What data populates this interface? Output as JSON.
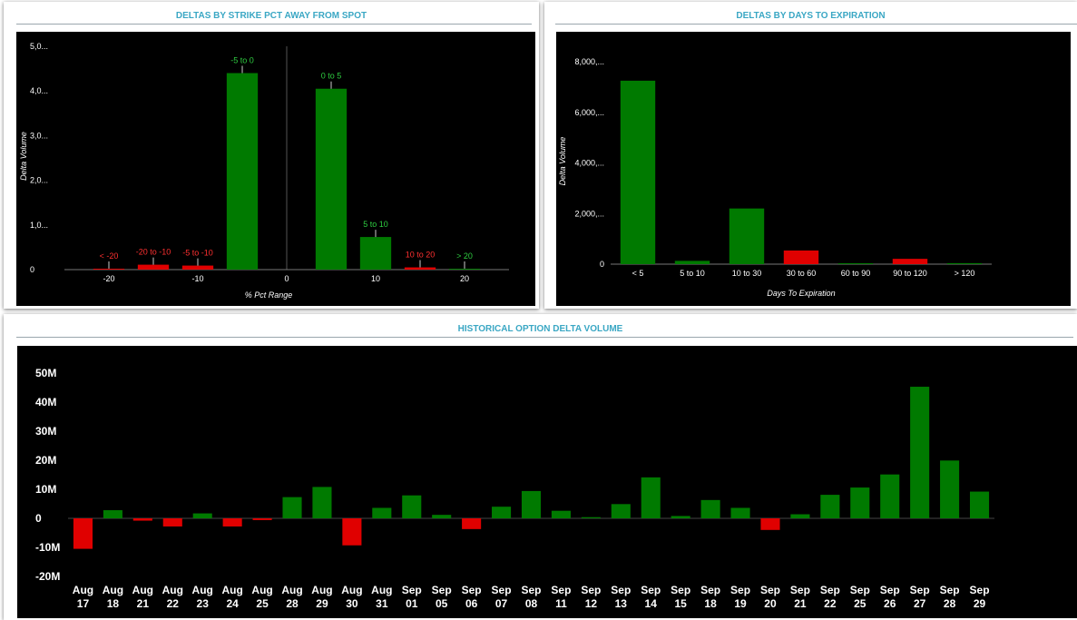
{
  "colors": {
    "positive": "#007a00",
    "negative": "#e00000",
    "axis_text": "#ffffff",
    "background": "#000000",
    "title": "#3aa7c4"
  },
  "strike_panel": {
    "title": "DELTAS BY STRIKE PCT AWAY FROM SPOT"
  },
  "expiry_panel": {
    "title": "DELTAS BY DAYS TO EXPIRATION"
  },
  "history_panel": {
    "title": "HISTORICAL OPTION DELTA VOLUME"
  },
  "chart_data": [
    {
      "id": "strike",
      "type": "bar",
      "xlabel": "% Pct Range",
      "ylabel": "Delta Volume",
      "xlim": [
        -25,
        25
      ],
      "ylim": [
        0,
        5000
      ],
      "x_ticks": [
        {
          "value": -20,
          "label": "-20"
        },
        {
          "value": -10,
          "label": "-10"
        },
        {
          "value": 0,
          "label": "0"
        },
        {
          "value": 10,
          "label": "10"
        },
        {
          "value": 20,
          "label": "20"
        }
      ],
      "y_ticks": [
        {
          "value": 0,
          "label": "0"
        },
        {
          "value": 1000,
          "label": "1,0..."
        },
        {
          "value": 2000,
          "label": "2,0..."
        },
        {
          "value": 3000,
          "label": "3,0..."
        },
        {
          "value": 4000,
          "label": "4,0..."
        },
        {
          "value": 5000,
          "label": "5,0..."
        }
      ],
      "bars": [
        {
          "label": "< -20",
          "x": -20,
          "value": 10,
          "sign": "negative"
        },
        {
          "label": "-20 to -10",
          "x": -15,
          "value": 110,
          "sign": "negative"
        },
        {
          "label": "-5 to -10",
          "x": -10,
          "value": 90,
          "sign": "negative"
        },
        {
          "label": "-5 to 0",
          "x": -5,
          "value": 4400,
          "sign": "positive"
        },
        {
          "label": "0 to 5",
          "x": 5,
          "value": 4050,
          "sign": "positive"
        },
        {
          "label": "5 to 10",
          "x": 10,
          "value": 730,
          "sign": "positive"
        },
        {
          "label": "10 to 20",
          "x": 15,
          "value": 50,
          "sign": "negative"
        },
        {
          "label": "> 20",
          "x": 20,
          "value": 10,
          "sign": "positive"
        }
      ]
    },
    {
      "id": "expiry",
      "type": "bar",
      "xlabel": "Days To Expiration",
      "ylabel": "Delta Volume",
      "ylim": [
        0,
        8000
      ],
      "y_ticks": [
        {
          "value": 0,
          "label": "0"
        },
        {
          "value": 2000,
          "label": "2,000,..."
        },
        {
          "value": 4000,
          "label": "4,000,..."
        },
        {
          "value": 6000,
          "label": "6,000,..."
        },
        {
          "value": 8000,
          "label": "8,000,..."
        }
      ],
      "categories": [
        "< 5",
        "5 to 10",
        "10 to 30",
        "30 to 60",
        "60 to 90",
        "90 to 120",
        "> 120"
      ],
      "values": [
        7250,
        130,
        2200,
        540,
        30,
        210,
        40
      ],
      "signs": [
        "positive",
        "positive",
        "positive",
        "negative",
        "positive",
        "negative",
        "positive"
      ]
    },
    {
      "id": "history",
      "type": "bar",
      "ylim": [
        -20,
        50
      ],
      "y_ticks": [
        {
          "value": 50,
          "label": "50M"
        },
        {
          "value": 40,
          "label": "40M"
        },
        {
          "value": 30,
          "label": "30M"
        },
        {
          "value": 20,
          "label": "20M"
        },
        {
          "value": 10,
          "label": "10M"
        },
        {
          "value": 0,
          "label": "0"
        },
        {
          "value": -10,
          "label": "-10M"
        },
        {
          "value": -20,
          "label": "-20M"
        }
      ],
      "categories": [
        [
          "Aug",
          "17"
        ],
        [
          "Aug",
          "18"
        ],
        [
          "Aug",
          "21"
        ],
        [
          "Aug",
          "22"
        ],
        [
          "Aug",
          "23"
        ],
        [
          "Aug",
          "24"
        ],
        [
          "Aug",
          "25"
        ],
        [
          "Aug",
          "28"
        ],
        [
          "Aug",
          "29"
        ],
        [
          "Aug",
          "30"
        ],
        [
          "Aug",
          "31"
        ],
        [
          "Sep",
          "01"
        ],
        [
          "Sep",
          "05"
        ],
        [
          "Sep",
          "06"
        ],
        [
          "Sep",
          "07"
        ],
        [
          "Sep",
          "08"
        ],
        [
          "Sep",
          "11"
        ],
        [
          "Sep",
          "12"
        ],
        [
          "Sep",
          "13"
        ],
        [
          "Sep",
          "14"
        ],
        [
          "Sep",
          "15"
        ],
        [
          "Sep",
          "18"
        ],
        [
          "Sep",
          "19"
        ],
        [
          "Sep",
          "20"
        ],
        [
          "Sep",
          "21"
        ],
        [
          "Sep",
          "22"
        ],
        [
          "Sep",
          "25"
        ],
        [
          "Sep",
          "26"
        ],
        [
          "Sep",
          "27"
        ],
        [
          "Sep",
          "28"
        ],
        [
          "Sep",
          "29"
        ]
      ],
      "values": [
        -10.5,
        2.8,
        -0.8,
        -2.8,
        1.7,
        -2.8,
        -0.6,
        7.3,
        10.8,
        -9.3,
        3.6,
        7.9,
        1.2,
        -3.7,
        4.0,
        9.4,
        2.6,
        0.4,
        4.9,
        14.1,
        0.8,
        6.3,
        3.6,
        -4.0,
        1.4,
        8.1,
        10.6,
        15.1,
        45.3,
        19.9,
        9.2
      ]
    }
  ]
}
